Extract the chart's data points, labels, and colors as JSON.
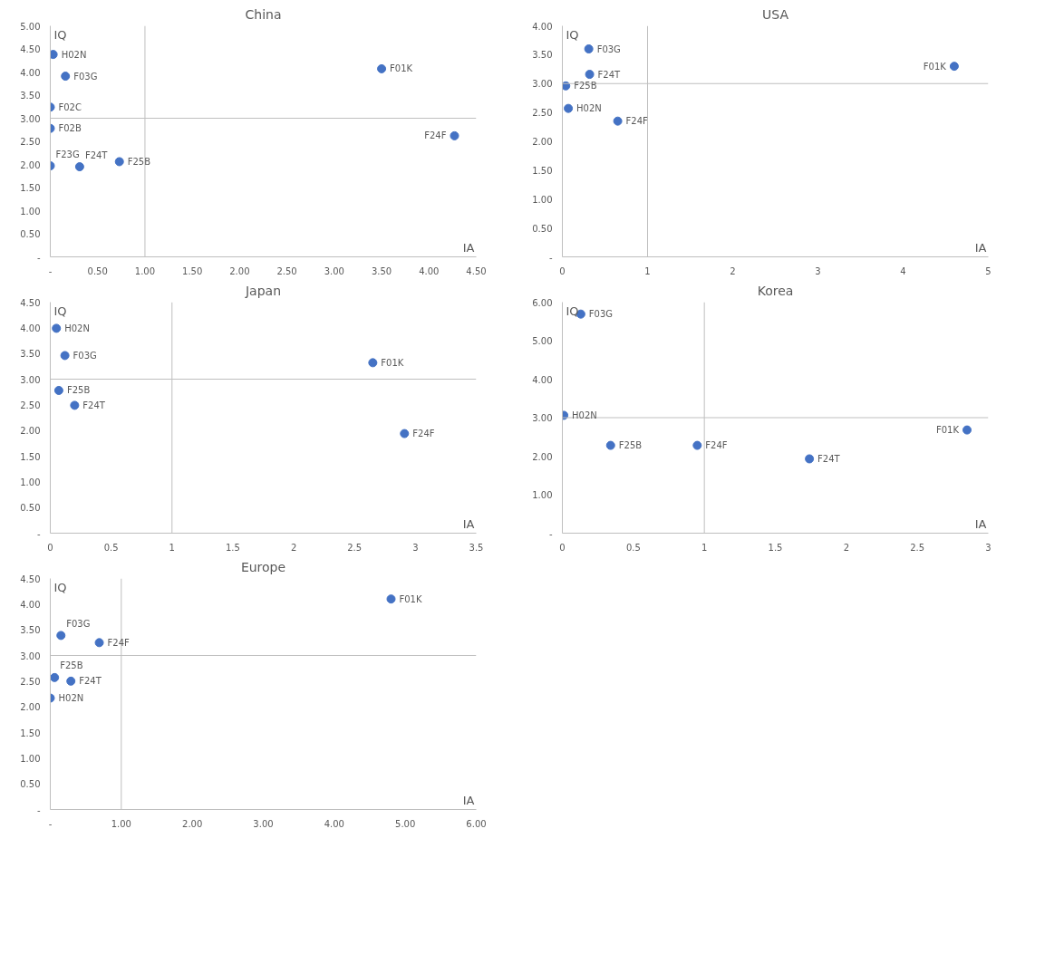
{
  "chart_data": [
    {
      "type": "scatter",
      "title": "China",
      "xlabel": "IA",
      "ylabel": "IQ",
      "color": "#4472c4",
      "marker": "circle",
      "grid": false,
      "x": [
        0.03,
        0.16,
        0,
        0,
        0,
        0.31,
        0.73,
        3.5,
        4.27
      ],
      "values": [
        4.38,
        3.91,
        3.24,
        2.78,
        1.97,
        1.95,
        2.06,
        4.07,
        2.62
      ],
      "annotations": [
        {
          "text": "H02N",
          "x": 0.03,
          "y": 4.38
        },
        {
          "text": "F03G",
          "x": 0.16,
          "y": 3.91
        },
        {
          "text": "F02C",
          "x": 0,
          "y": 3.24
        },
        {
          "text": "F02B",
          "x": 0,
          "y": 2.78
        },
        {
          "text": "F23G",
          "x": 0,
          "y": 1.97
        },
        {
          "text": "F24T",
          "x": 0.31,
          "y": 1.95
        },
        {
          "text": "F25B",
          "x": 0.73,
          "y": 2.06
        },
        {
          "text": "F01K",
          "x": 3.5,
          "y": 4.07
        },
        {
          "text": "F24F",
          "x": 4.27,
          "y": 2.62
        }
      ],
      "ref_lines": [
        {
          "axis": "x",
          "value": 1,
          "color": "#bfbfbf"
        },
        {
          "axis": "y",
          "value": 3,
          "color": "#bfbfbf"
        }
      ],
      "xlim": [
        0,
        4.5
      ],
      "ylim": [
        0,
        5
      ],
      "xticks": [
        {
          "value": 0,
          "label": "-"
        },
        {
          "value": 0.5,
          "label": "0.50"
        },
        {
          "value": 1,
          "label": "1.00"
        },
        {
          "value": 1.5,
          "label": "1.50"
        },
        {
          "value": 2,
          "label": "2.00"
        },
        {
          "value": 2.5,
          "label": "2.50"
        },
        {
          "value": 3,
          "label": "3.00"
        },
        {
          "value": 3.5,
          "label": "3.50"
        },
        {
          "value": 4,
          "label": "4.00"
        },
        {
          "value": 4.5,
          "label": "4.50"
        }
      ],
      "yticks": [
        {
          "value": 0,
          "label": "-"
        },
        {
          "value": 0.5,
          "label": "0.50"
        },
        {
          "value": 1,
          "label": "1.00"
        },
        {
          "value": 1.5,
          "label": "1.50"
        },
        {
          "value": 2,
          "label": "2.00"
        },
        {
          "value": 2.5,
          "label": "2.50"
        },
        {
          "value": 3,
          "label": "3.00"
        },
        {
          "value": 3.5,
          "label": "3.50"
        },
        {
          "value": 4,
          "label": "4.00"
        },
        {
          "value": 4.5,
          "label": "4.50"
        },
        {
          "value": 5,
          "label": "5.00"
        }
      ]
    },
    {
      "type": "scatter",
      "title": "USA",
      "xlabel": "IA",
      "ylabel": "IQ",
      "color": "#4472c4",
      "marker": "circle",
      "grid": false,
      "x": [
        0.31,
        0.32,
        0.04,
        0.07,
        0.65,
        4.6
      ],
      "values": [
        3.6,
        3.16,
        2.96,
        2.57,
        2.35,
        3.3
      ],
      "annotations": [
        {
          "text": "F03G",
          "x": 0.31,
          "y": 3.6
        },
        {
          "text": "F24T",
          "x": 0.32,
          "y": 3.16
        },
        {
          "text": "F25B",
          "x": 0.04,
          "y": 2.96
        },
        {
          "text": "H02N",
          "x": 0.07,
          "y": 2.57
        },
        {
          "text": "F24F",
          "x": 0.65,
          "y": 2.35
        },
        {
          "text": "F01K",
          "x": 4.6,
          "y": 3.3
        }
      ],
      "ref_lines": [
        {
          "axis": "x",
          "value": 1,
          "color": "#bfbfbf"
        },
        {
          "axis": "y",
          "value": 3,
          "color": "#bfbfbf"
        }
      ],
      "xlim": [
        0,
        5
      ],
      "ylim": [
        0,
        4
      ],
      "xticks": [
        0,
        1,
        2,
        3,
        4,
        5
      ],
      "yticks": [
        {
          "value": 0,
          "label": "-"
        },
        {
          "value": 0.5,
          "label": "0.50"
        },
        {
          "value": 1,
          "label": "1.00"
        },
        {
          "value": 1.5,
          "label": "1.50"
        },
        {
          "value": 2,
          "label": "2.00"
        },
        {
          "value": 2.5,
          "label": "2.50"
        },
        {
          "value": 3,
          "label": "3.00"
        },
        {
          "value": 3.5,
          "label": "3.50"
        },
        {
          "value": 4,
          "label": "4.00"
        }
      ]
    },
    {
      "type": "scatter",
      "title": "Japan",
      "xlabel": "IA",
      "ylabel": "IQ",
      "color": "#4472c4",
      "marker": "circle",
      "grid": false,
      "x": [
        0.05,
        0.12,
        0.07,
        0.2,
        2.65,
        2.91
      ],
      "values": [
        3.99,
        3.46,
        2.78,
        2.49,
        3.32,
        1.94
      ],
      "annotations": [
        {
          "text": "H02N",
          "x": 0.05,
          "y": 3.99
        },
        {
          "text": "F03G",
          "x": 0.12,
          "y": 3.46
        },
        {
          "text": "F25B",
          "x": 0.07,
          "y": 2.78
        },
        {
          "text": "F24T",
          "x": 0.2,
          "y": 2.49
        },
        {
          "text": "F01K",
          "x": 2.65,
          "y": 3.32
        },
        {
          "text": "F24F",
          "x": 2.91,
          "y": 1.94
        }
      ],
      "ref_lines": [
        {
          "axis": "x",
          "value": 1,
          "color": "#bfbfbf"
        },
        {
          "axis": "y",
          "value": 3,
          "color": "#bfbfbf"
        }
      ],
      "xlim": [
        0,
        3.5
      ],
      "ylim": [
        0,
        4.5
      ],
      "xticks": [
        0,
        0.5,
        1,
        1.5,
        2,
        2.5,
        3,
        3.5
      ],
      "yticks": [
        {
          "value": 0,
          "label": "-"
        },
        {
          "value": 0.5,
          "label": "0.50"
        },
        {
          "value": 1,
          "label": "1.00"
        },
        {
          "value": 1.5,
          "label": "1.50"
        },
        {
          "value": 2,
          "label": "2.00"
        },
        {
          "value": 2.5,
          "label": "2.50"
        },
        {
          "value": 3,
          "label": "3.00"
        },
        {
          "value": 3.5,
          "label": "3.50"
        },
        {
          "value": 4,
          "label": "4.00"
        },
        {
          "value": 4.5,
          "label": "4.50"
        }
      ]
    },
    {
      "type": "scatter",
      "title": "Korea",
      "xlabel": "IA",
      "ylabel": "IQ",
      "color": "#4472c4",
      "marker": "circle",
      "grid": false,
      "x": [
        0.13,
        0.01,
        0.34,
        0.95,
        1.74,
        2.85
      ],
      "values": [
        5.69,
        3.06,
        2.28,
        2.28,
        1.93,
        2.68
      ],
      "annotations": [
        {
          "text": "F03G",
          "x": 0.13,
          "y": 5.69
        },
        {
          "text": "H02N",
          "x": 0.01,
          "y": 3.06
        },
        {
          "text": "F25B",
          "x": 0.34,
          "y": 2.28
        },
        {
          "text": "F24F",
          "x": 0.95,
          "y": 2.28
        },
        {
          "text": "F24T",
          "x": 1.74,
          "y": 1.93
        },
        {
          "text": "F01K",
          "x": 2.85,
          "y": 2.68
        }
      ],
      "ref_lines": [
        {
          "axis": "x",
          "value": 1,
          "color": "#bfbfbf"
        },
        {
          "axis": "y",
          "value": 3,
          "color": "#bfbfbf"
        }
      ],
      "xlim": [
        0,
        3
      ],
      "ylim": [
        0,
        6
      ],
      "xticks": [
        0,
        0.5,
        1,
        1.5,
        2,
        2.5,
        3
      ],
      "yticks": [
        {
          "value": 0,
          "label": "-"
        },
        {
          "value": 1,
          "label": "1.00"
        },
        {
          "value": 2,
          "label": "2.00"
        },
        {
          "value": 3,
          "label": "3.00"
        },
        {
          "value": 4,
          "label": "4.00"
        },
        {
          "value": 5,
          "label": "5.00"
        },
        {
          "value": 6,
          "label": "6.00"
        }
      ]
    },
    {
      "type": "scatter",
      "title": "Europe",
      "xlabel": "IA",
      "ylabel": "IQ",
      "color": "#4472c4",
      "marker": "circle",
      "grid": false,
      "x": [
        4.8,
        0.15,
        0.69,
        0.06,
        0.29,
        0.0
      ],
      "values": [
        4.1,
        3.39,
        3.25,
        2.57,
        2.5,
        2.17
      ],
      "annotations": [
        {
          "text": "F01K",
          "x": 4.8,
          "y": 4.1
        },
        {
          "text": "F03G",
          "x": 0.15,
          "y": 3.39
        },
        {
          "text": "F24F",
          "x": 0.69,
          "y": 3.25
        },
        {
          "text": "F25B",
          "x": 0.06,
          "y": 2.57
        },
        {
          "text": "F24T",
          "x": 0.29,
          "y": 2.5
        },
        {
          "text": "H02N",
          "x": 0.0,
          "y": 2.17
        }
      ],
      "ref_lines": [
        {
          "axis": "x",
          "value": 1,
          "color": "#bfbfbf"
        },
        {
          "axis": "y",
          "value": 3,
          "color": "#bfbfbf"
        }
      ],
      "xlim": [
        0,
        6
      ],
      "ylim": [
        0,
        4.5
      ],
      "xticks": [
        {
          "value": 0,
          "label": "-"
        },
        {
          "value": 1,
          "label": "1.00"
        },
        {
          "value": 2,
          "label": "2.00"
        },
        {
          "value": 3,
          "label": "3.00"
        },
        {
          "value": 4,
          "label": "4.00"
        },
        {
          "value": 5,
          "label": "5.00"
        },
        {
          "value": 6,
          "label": "6.00"
        }
      ],
      "yticks": [
        {
          "value": 0,
          "label": "-"
        },
        {
          "value": 0.5,
          "label": "0.50"
        },
        {
          "value": 1,
          "label": "1.00"
        },
        {
          "value": 1.5,
          "label": "1.50"
        },
        {
          "value": 2,
          "label": "2.00"
        },
        {
          "value": 2.5,
          "label": "2.50"
        },
        {
          "value": 3,
          "label": "3.00"
        },
        {
          "value": 3.5,
          "label": "3.50"
        },
        {
          "value": 4,
          "label": "4.00"
        },
        {
          "value": 4.5,
          "label": "4.50"
        }
      ]
    }
  ]
}
